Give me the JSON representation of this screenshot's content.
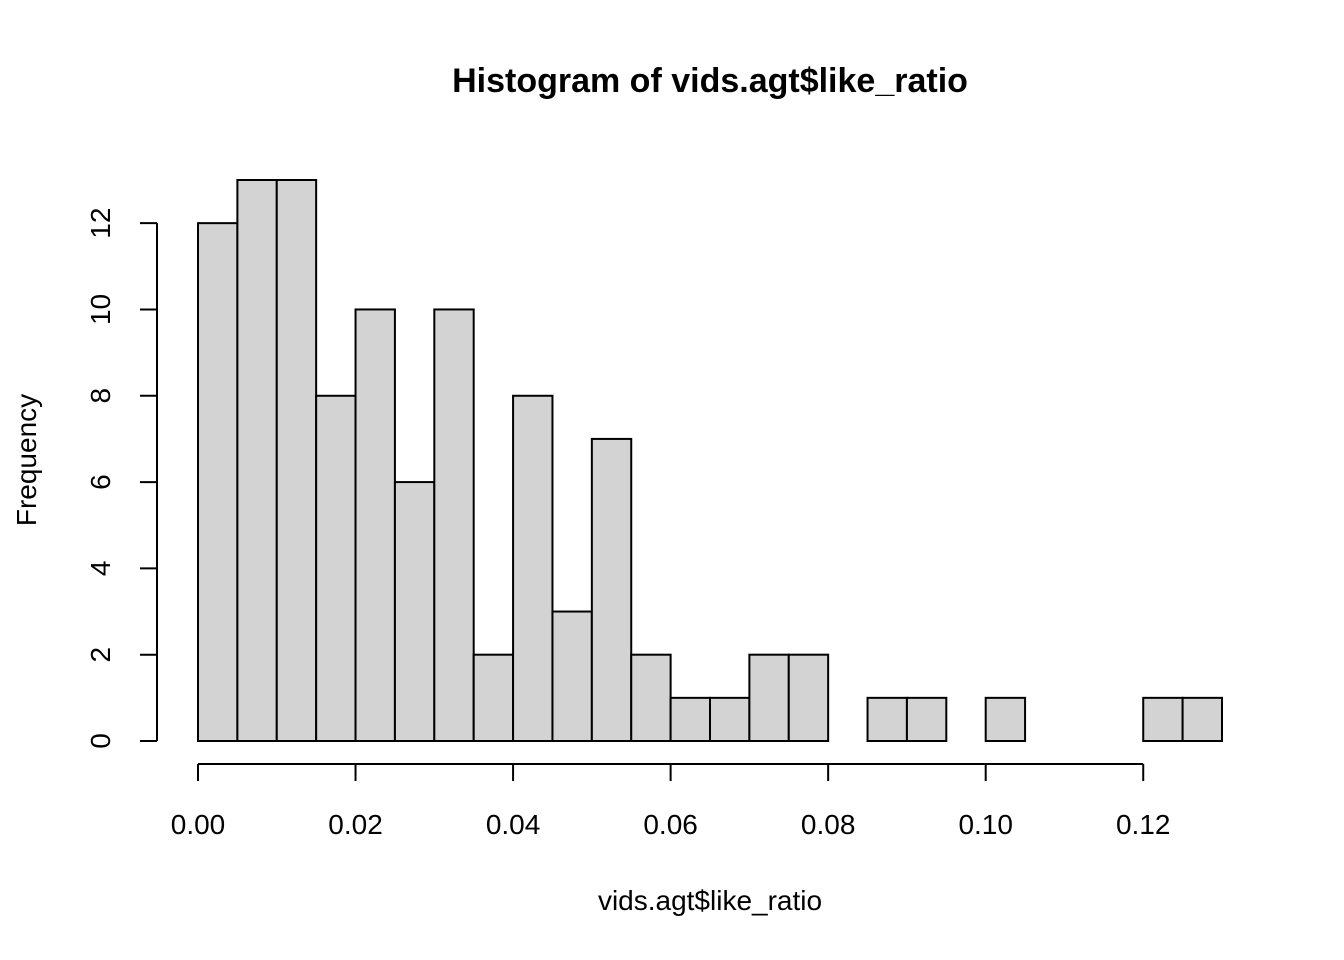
{
  "chart_data": {
    "type": "bar",
    "title": "Histogram of vids.agt$like_ratio",
    "xlabel": "vids.agt$like_ratio",
    "ylabel": "Frequency",
    "bin_width": 0.005,
    "bin_start": 0.0,
    "values": [
      12,
      13,
      13,
      8,
      10,
      6,
      10,
      2,
      8,
      3,
      7,
      2,
      1,
      1,
      2,
      2,
      0,
      1,
      1,
      0,
      1,
      0,
      0,
      0,
      1,
      1
    ],
    "xlim": [
      0.0,
      0.13
    ],
    "ylim": [
      0,
      13
    ],
    "x_ticks": [
      0.0,
      0.02,
      0.04,
      0.06,
      0.08,
      0.1,
      0.12
    ],
    "x_tick_labels": [
      "0.00",
      "0.02",
      "0.04",
      "0.06",
      "0.08",
      "0.10",
      "0.12"
    ],
    "y_ticks": [
      0,
      2,
      4,
      6,
      8,
      10,
      12
    ],
    "y_tick_labels": [
      "0",
      "2",
      "4",
      "6",
      "8",
      "10",
      "12"
    ],
    "bar_fill": "#d3d3d3",
    "bar_stroke": "#000000"
  }
}
